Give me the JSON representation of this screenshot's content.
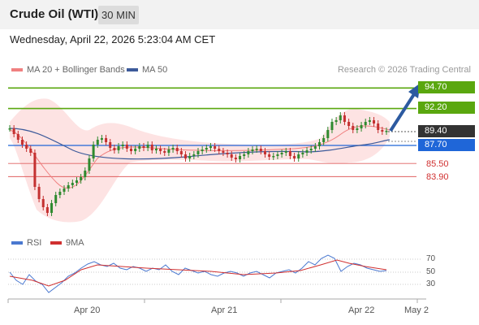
{
  "header": {
    "instrument": "Crude Oil (WTI)",
    "interval": "30 MIN"
  },
  "timestamp": "Wednesday, April 22, 2026 5:23:04 AM CET",
  "legend": {
    "ma20": "MA 20 + Bollinger Bands",
    "ma50": "MA 50",
    "credit": "Research © 2026 Trading Central"
  },
  "levels": {
    "r2": "94.70",
    "r1": "92.20",
    "last": "89.40",
    "pivot": "87.70",
    "s1": "85.50",
    "s2": "83.90"
  },
  "rsi_legend": {
    "rsi": "RSI",
    "ma": "9MA"
  },
  "rsi_ticks": [
    "70",
    "50",
    "30"
  ],
  "x_labels": [
    "Apr 20",
    "Apr 21",
    "Apr 22",
    "May 2"
  ],
  "colors": {
    "resistance": "#5aa70f",
    "pivot": "#1f66d8",
    "support": "#e06060",
    "last": "#333333",
    "bull": "#2f8a2f",
    "bear": "#c43030",
    "ma20": "#f08080",
    "ma50": "#3c5a9a",
    "rsi": "#4a78d0",
    "rsi_ma": "#d03030"
  }
}
